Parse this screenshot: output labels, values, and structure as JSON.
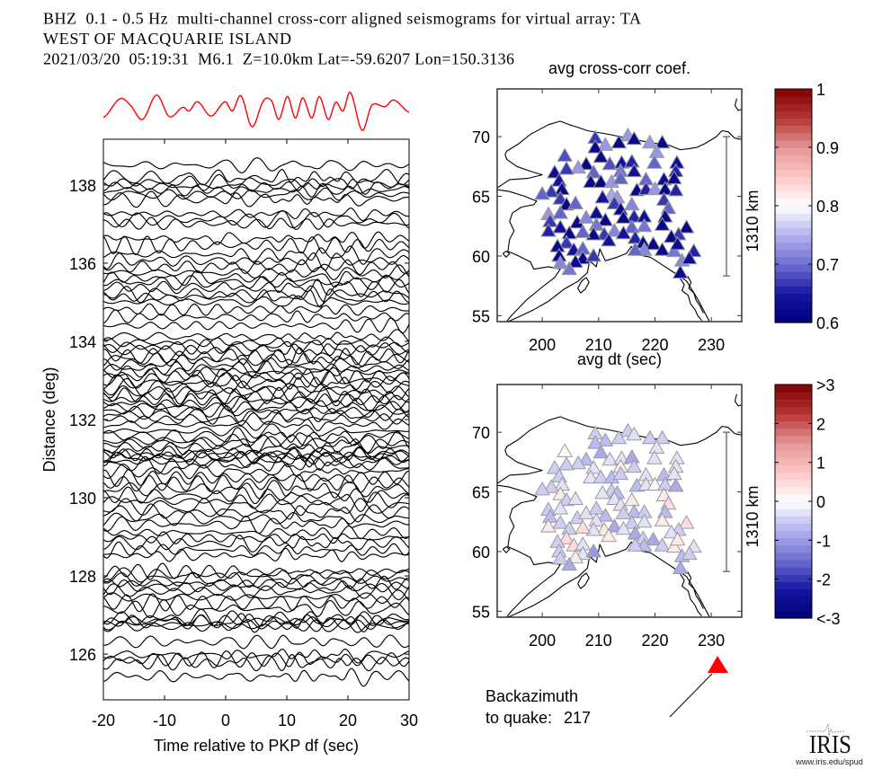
{
  "header": {
    "line1": "BHZ  0.1 - 0.5 Hz  multi-channel cross-corr aligned seismograms for virtual array: TA",
    "line2": "WEST OF MACQUARIE ISLAND",
    "line3": "2021/03/20  05:19:31  M6.1  Z=10.0km Lat=-59.6207 Lon=150.3136"
  },
  "backazimuth": {
    "label": "Backazimuth",
    "sublabel": "to quake:",
    "value": "217",
    "marker_color": "#ff0000"
  },
  "logo": {
    "name": "IRIS",
    "url": "www.iris.edu/spud"
  },
  "chart_data": [
    {
      "type": "line",
      "xlabel": "Time relative to PKP df (sec)",
      "ylabel": "Distance (deg)",
      "xlim": [
        -20,
        30
      ],
      "ylim": [
        124.83,
        139.17
      ],
      "xticks": [
        -20,
        -10,
        0,
        10,
        20,
        30
      ],
      "xtick_labels": [
        "-20",
        "-10",
        "0",
        "10",
        "20",
        "30"
      ],
      "yticks": [
        126,
        128,
        130,
        132,
        134,
        136,
        138
      ],
      "ytick_labels": [
        "126",
        "128",
        "130",
        "132",
        "134",
        "136",
        "138"
      ],
      "grid": false,
      "trace_color": "#000000",
      "trace_distances": [
        138.5,
        138.15,
        138.05,
        137.95,
        137.85,
        137.75,
        137.6,
        137.25,
        137.1,
        137.0,
        136.6,
        136.45,
        136.2,
        136.05,
        135.9,
        135.75,
        135.6,
        135.5,
        135.35,
        135.2,
        135.1,
        135.0,
        134.8,
        134.6,
        134.4,
        134.1,
        133.95,
        133.85,
        133.75,
        133.6,
        133.5,
        133.4,
        133.3,
        133.2,
        133.1,
        133.0,
        132.9,
        132.8,
        132.7,
        132.6,
        132.5,
        132.4,
        132.3,
        132.2,
        132.1,
        132.0,
        131.85,
        131.7,
        131.55,
        131.45,
        131.35,
        131.25,
        131.15,
        131.1,
        131.05,
        131.0,
        130.9,
        130.8,
        130.65,
        130.5,
        130.35,
        130.2,
        130.05,
        129.9,
        129.75,
        129.6,
        129.45,
        129.3,
        129.1,
        128.95,
        128.8,
        128.65,
        128.5,
        128.1,
        128.0,
        127.9,
        127.8,
        127.7,
        127.6,
        127.45,
        127.3,
        127.15,
        126.9,
        126.85,
        126.8,
        126.75,
        126.7,
        126.3,
        125.95,
        125.85,
        125.75,
        125.4
      ],
      "stack": {
        "color": "#ff0000",
        "t": [
          -19.9,
          -17.3,
          -15.6,
          -13.6,
          -11.3,
          -9.2,
          -7.0,
          -6.0,
          -4.6,
          -2.4,
          -0.1,
          1.1,
          2.5,
          4.3,
          6.2,
          7.5,
          8.7,
          10.1,
          11.4,
          12.6,
          14.1,
          15.3,
          16.8,
          18.0,
          19.2,
          20.4,
          22.3,
          23.9,
          26.1,
          27.5,
          30.0
        ],
        "amplitude": [
          -0.25,
          0.68,
          0.36,
          -0.36,
          0.87,
          -0.22,
          0.25,
          0.07,
          0.53,
          -0.19,
          0.53,
          0.07,
          0.83,
          -0.73,
          0.58,
          0.58,
          -0.36,
          0.8,
          -0.29,
          0.73,
          -0.29,
          0.8,
          -0.36,
          0.51,
          0.07,
          1.0,
          -0.91,
          0.36,
          0.29,
          0.62,
          0.0
        ]
      }
    },
    {
      "type": "scatter",
      "title": "avg cross-corr coef.",
      "xlabel": "avg dt (sec)",
      "xlim": [
        192,
        235.4
      ],
      "ylim": [
        54.5,
        74.0
      ],
      "xticks": [
        200,
        210,
        220,
        230
      ],
      "xtick_labels": [
        "200",
        "210",
        "220",
        "230"
      ],
      "yticks": [
        55,
        60,
        65,
        70
      ],
      "ytick_labels": [
        "55",
        "60",
        "65",
        "70"
      ],
      "marker": "triangle",
      "scale_bar_label": "1310 km",
      "colorbar": {
        "range": [
          0.6,
          1.0
        ],
        "ticks": [
          0.6,
          0.7,
          0.8,
          0.9,
          1.0
        ],
        "tick_labels": [
          "0.6",
          "0.7",
          "0.8",
          "0.9",
          "1"
        ],
        "colormap": "blue-white-red"
      },
      "x": [
        209.4,
        215.2,
        216.3,
        213.6,
        211.2,
        209.4,
        219.1,
        221.3,
        220.3,
        204.0,
        210.4,
        207.8,
        206.4,
        204.3,
        212.0,
        214.1,
        215.9,
        216.3,
        213.9,
        219.9,
        223.9,
        223.7,
        209.1,
        202.2,
        218.4,
        221.6,
        223.4,
        208.6,
        210.4,
        212.3,
        213.9,
        203.0,
        203.5,
        201.6,
        200.0,
        216.8,
        218.4,
        220.0,
        221.8,
        223.7,
        212.3,
        210.7,
        213.3,
        203.2,
        204.3,
        205.9,
        201.1,
        203.2,
        201.4,
        203.2,
        201.1,
        206.2,
        207.8,
        209.6,
        211.2,
        209.6,
        211.0,
        212.8,
        209.1,
        207.2,
        204.8,
        204.3,
        202.7,
        205.6,
        207.2,
        207.2,
        209.1,
        205.9,
        203.0,
        204.8,
        203.2,
        211.8,
        212.8,
        213.9,
        215.9,
        216.3,
        214.4,
        218.1,
        218.1,
        215.9,
        214.4,
        216.5,
        217.9,
        219.7,
        218.1,
        216.5,
        221.3,
        223.4,
        221.6,
        222.4,
        221.8,
        221.3,
        225.6,
        224.2,
        222.9,
        224.0,
        226.9,
        224.8,
        226.1,
        224.5
      ],
      "y": [
        69.9,
        70.1,
        69.8,
        69.5,
        69.3,
        69.1,
        69.5,
        69.5,
        68.7,
        68.4,
        68.3,
        67.7,
        67.4,
        67.3,
        67.7,
        67.8,
        67.9,
        67.1,
        67.1,
        67.8,
        67.8,
        67.1,
        67.0,
        67.0,
        66.4,
        66.4,
        66.5,
        66.2,
        66.2,
        66.2,
        66.5,
        66.3,
        65.6,
        65.4,
        65.2,
        65.5,
        65.6,
        65.6,
        65.6,
        65.5,
        65.1,
        64.9,
        64.9,
        64.8,
        64.3,
        64.4,
        63.5,
        63.6,
        62.9,
        62.4,
        62.1,
        62.8,
        63.2,
        63.6,
        63.0,
        62.6,
        61.8,
        62.1,
        61.8,
        62.0,
        61.9,
        61.1,
        60.8,
        60.5,
        60.6,
        59.8,
        60.0,
        59.5,
        60.0,
        58.9,
        59.4,
        61.3,
        64.4,
        63.9,
        64.3,
        63.3,
        63.2,
        63.3,
        62.5,
        62.4,
        61.9,
        61.5,
        61.1,
        61.0,
        60.5,
        60.5,
        60.5,
        60.4,
        64.7,
        64.0,
        63.3,
        62.6,
        62.4,
        61.8,
        61.6,
        61.0,
        60.4,
        59.6,
        59.8,
        58.6
      ],
      "values": [
        0.67,
        0.73,
        0.62,
        0.62,
        0.73,
        0.62,
        0.73,
        0.62,
        0.73,
        0.68,
        0.62,
        0.62,
        0.73,
        0.67,
        0.68,
        0.64,
        0.66,
        0.64,
        0.71,
        0.69,
        0.63,
        0.66,
        0.69,
        0.63,
        0.69,
        0.63,
        0.62,
        0.62,
        0.62,
        0.73,
        0.7,
        0.64,
        0.62,
        0.67,
        0.7,
        0.62,
        0.66,
        0.73,
        0.62,
        0.66,
        0.74,
        0.64,
        0.73,
        0.67,
        0.62,
        0.7,
        0.73,
        0.7,
        0.67,
        0.64,
        0.65,
        0.62,
        0.72,
        0.63,
        0.62,
        0.71,
        0.67,
        0.72,
        0.62,
        0.69,
        0.62,
        0.67,
        0.62,
        0.64,
        0.69,
        0.62,
        0.67,
        0.63,
        0.62,
        0.71,
        0.72,
        0.64,
        0.67,
        0.62,
        0.72,
        0.66,
        0.62,
        0.63,
        0.71,
        0.69,
        0.64,
        0.66,
        0.63,
        0.62,
        0.72,
        0.7,
        0.62,
        0.71,
        0.67,
        0.69,
        0.62,
        0.62,
        0.62,
        0.67,
        0.62,
        0.63,
        0.65,
        0.72,
        0.63,
        0.62
      ]
    },
    {
      "type": "scatter",
      "xlim": [
        192,
        235.4
      ],
      "ylim": [
        54.5,
        74.0
      ],
      "xticks": [
        200,
        210,
        220,
        230
      ],
      "xtick_labels": [
        "200",
        "210",
        "220",
        "230"
      ],
      "yticks": [
        55,
        60,
        65,
        70
      ],
      "ytick_labels": [
        "55",
        "60",
        "65",
        "70"
      ],
      "marker": "triangle",
      "scale_bar_label": "1310 km",
      "colorbar": {
        "range": [
          -3,
          3
        ],
        "ticks": [
          -3,
          -2,
          -1,
          0,
          1,
          2,
          3
        ],
        "tick_labels": [
          "<-3",
          "-2",
          "-1",
          "0",
          "1",
          "2",
          ">3"
        ],
        "colormap": "blue-white-red"
      },
      "x": [
        209.4,
        215.2,
        216.3,
        213.6,
        211.2,
        209.4,
        219.1,
        221.3,
        220.3,
        204.0,
        210.4,
        207.8,
        206.4,
        204.3,
        212.0,
        214.1,
        215.9,
        216.3,
        213.9,
        219.9,
        223.9,
        223.7,
        209.1,
        202.2,
        218.4,
        221.6,
        223.4,
        208.6,
        210.4,
        212.3,
        213.9,
        203.0,
        203.5,
        201.6,
        200.0,
        216.8,
        218.4,
        220.0,
        221.8,
        223.7,
        212.3,
        210.7,
        213.3,
        203.2,
        204.3,
        205.9,
        201.1,
        203.2,
        201.4,
        203.2,
        201.1,
        206.2,
        207.8,
        209.6,
        211.2,
        209.6,
        211.0,
        212.8,
        209.1,
        207.2,
        204.8,
        204.3,
        202.7,
        205.6,
        207.2,
        207.2,
        209.1,
        205.9,
        203.0,
        204.8,
        203.2,
        211.8,
        212.8,
        213.9,
        215.9,
        216.3,
        214.4,
        218.1,
        218.1,
        215.9,
        214.4,
        216.5,
        217.9,
        219.7,
        218.1,
        216.5,
        221.3,
        223.4,
        221.6,
        222.4,
        221.8,
        221.3,
        225.6,
        224.2,
        222.9,
        224.0,
        226.9,
        224.8,
        226.1,
        224.5
      ],
      "y": [
        69.9,
        70.1,
        69.8,
        69.5,
        69.3,
        69.1,
        69.5,
        69.5,
        68.7,
        68.4,
        68.3,
        67.7,
        67.4,
        67.3,
        67.7,
        67.8,
        67.9,
        67.1,
        67.1,
        67.8,
        67.8,
        67.1,
        67.0,
        67.0,
        66.4,
        66.4,
        66.5,
        66.2,
        66.2,
        66.2,
        66.5,
        66.3,
        65.6,
        65.4,
        65.2,
        65.5,
        65.6,
        65.6,
        65.6,
        65.5,
        65.1,
        64.9,
        64.9,
        64.8,
        64.3,
        64.4,
        63.5,
        63.6,
        62.9,
        62.4,
        62.1,
        62.8,
        63.2,
        63.6,
        63.0,
        62.6,
        61.8,
        62.1,
        61.8,
        62.0,
        61.9,
        61.1,
        60.8,
        60.5,
        60.6,
        59.8,
        60.0,
        59.5,
        60.0,
        58.9,
        59.4,
        61.3,
        64.4,
        63.9,
        64.3,
        63.3,
        63.2,
        63.3,
        62.5,
        62.4,
        61.9,
        61.5,
        61.1,
        61.0,
        60.5,
        60.5,
        60.5,
        60.4,
        64.7,
        64.0,
        63.3,
        62.6,
        62.4,
        61.8,
        61.6,
        61.0,
        60.4,
        59.6,
        59.8,
        58.6
      ],
      "values": [
        -0.4,
        -0.5,
        -0.3,
        -0.4,
        -0.6,
        -0.7,
        -0.4,
        -0.5,
        -0.3,
        0.0,
        -0.9,
        -0.6,
        -0.5,
        -0.4,
        -0.3,
        -0.2,
        -0.8,
        -0.5,
        0.2,
        -0.2,
        -0.3,
        -0.2,
        -0.3,
        -0.4,
        -0.3,
        -0.6,
        -0.2,
        -0.2,
        -0.4,
        -0.6,
        -0.5,
        -0.5,
        -0.3,
        -0.4,
        -0.4,
        -0.7,
        -0.2,
        -0.1,
        -0.4,
        -0.9,
        -0.5,
        -0.3,
        -0.6,
        0.3,
        -0.4,
        -0.2,
        -0.5,
        -0.3,
        -0.6,
        -0.4,
        0.3,
        -0.5,
        -0.3,
        -0.4,
        -0.6,
        -0.2,
        0.3,
        -0.8,
        -0.3,
        0.4,
        -0.5,
        0.5,
        -0.4,
        0.4,
        -0.3,
        -0.2,
        -1.0,
        0.3,
        -0.5,
        -0.8,
        -0.4,
        0.3,
        -0.2,
        -0.3,
        0.2,
        -0.7,
        -0.4,
        -0.5,
        -0.3,
        -0.5,
        -0.3,
        -0.8,
        -0.4,
        -0.9,
        -0.6,
        -0.4,
        -0.5,
        0.3,
        0.2,
        0.4,
        -0.7,
        0.3,
        0.5,
        -0.4,
        -0.3,
        0.2,
        -0.3,
        -0.6,
        -0.5,
        -0.9
      ]
    }
  ]
}
